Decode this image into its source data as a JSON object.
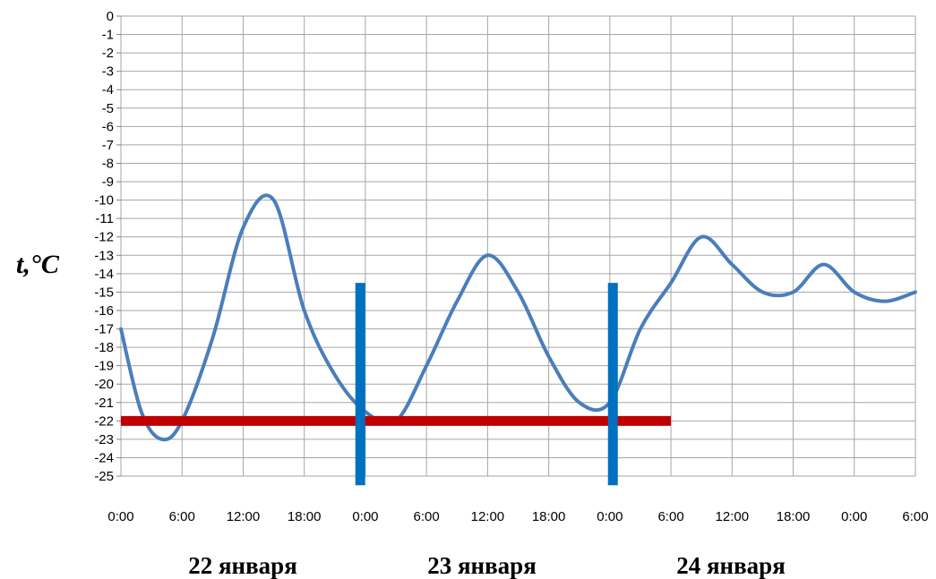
{
  "chart_data": {
    "type": "line",
    "ylabel": "t,°C",
    "ylim": [
      -25,
      0
    ],
    "yticks": [
      0,
      -1,
      -2,
      -3,
      -4,
      -5,
      -6,
      -7,
      -8,
      -9,
      -10,
      -11,
      -12,
      -13,
      -14,
      -15,
      -16,
      -17,
      -18,
      -19,
      -20,
      -21,
      -22,
      -23,
      -24,
      -25
    ],
    "xticks": [
      "0:00",
      "6:00",
      "12:00",
      "18:00",
      "0:00",
      "6:00",
      "12:00",
      "18:00",
      "0:00",
      "6:00",
      "12:00",
      "18:00",
      "0:00",
      "6:00"
    ],
    "x_unit_hours_from_start": true,
    "day_labels": [
      "22 января",
      "23 января",
      "24 января"
    ],
    "grid": true,
    "series": [
      {
        "color": "#4a7ebb",
        "x": [
          0,
          2,
          4,
          6,
          9,
          12,
          15,
          18,
          21,
          24,
          27,
          30,
          33,
          36,
          39,
          42,
          45,
          48,
          51,
          54,
          57,
          60,
          63,
          66,
          69,
          72,
          75,
          78
        ],
        "y": [
          -17,
          -21.5,
          -23,
          -22,
          -17.5,
          -11.5,
          -10,
          -16,
          -19.5,
          -21.5,
          -22,
          -19,
          -15.5,
          -13,
          -15,
          -18.5,
          -21,
          -21,
          -17,
          -14.5,
          -12,
          -13.5,
          -15,
          -15,
          -13.5,
          -15,
          -15.5,
          -15
        ]
      }
    ],
    "overlays": {
      "horizontal_line": {
        "y": -22,
        "x_range": [
          0,
          54
        ],
        "color": "#c00000"
      },
      "vertical_lines": [
        {
          "x": 23.5,
          "y_range": [
            -25.5,
            -14.5
          ],
          "color": "#0070c0"
        },
        {
          "x": 48.3,
          "y_range": [
            -25.5,
            -14.5
          ],
          "color": "#0070c0"
        }
      ]
    }
  }
}
